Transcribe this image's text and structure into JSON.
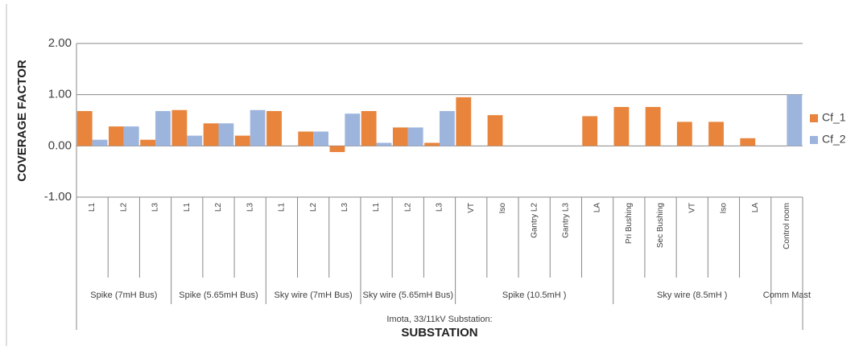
{
  "chart_data": {
    "type": "bar",
    "y_label": "COVERAGE FACTOR",
    "x_label": "SUBSTATION",
    "supergroup": "Imota, 33/11kV Substation:",
    "category_groups": [
      {
        "name": "Spike (7mH Bus)",
        "categories": [
          "L1",
          "L2",
          "L3"
        ]
      },
      {
        "name": "Spike (5.65mH Bus)",
        "categories": [
          "L1",
          "L2",
          "L3"
        ]
      },
      {
        "name": "Sky wire (7mH Bus)",
        "categories": [
          "L1",
          "L2",
          "L3"
        ]
      },
      {
        "name": "Sky wire (5.65mH Bus)",
        "categories": [
          "L1",
          "L2",
          "L3"
        ]
      },
      {
        "name": "Spike (10.5mH )",
        "categories": [
          "VT",
          "Iso",
          "Gantry L2",
          "Gantry L3",
          "LA"
        ]
      },
      {
        "name": "Sky wire (8.5mH )",
        "categories": [
          "Pri Bushing",
          "Sec Bushing",
          "VT",
          "Iso",
          "LA"
        ]
      },
      {
        "name": "Comm Mast",
        "categories": [
          "Control room"
        ]
      }
    ],
    "series": [
      {
        "name": "Cf_1",
        "color": "#e8843c",
        "values": [
          0.68,
          0.38,
          0.12,
          0.7,
          0.44,
          0.2,
          0.68,
          0.28,
          -0.12,
          0.68,
          0.36,
          0.06,
          0.95,
          0.6,
          0,
          0,
          0.58,
          0.76,
          0.76,
          0.47,
          0.47,
          0.15,
          0
        ]
      },
      {
        "name": "Cf_2",
        "color": "#9db5dd",
        "values": [
          0.12,
          0.38,
          0.68,
          0.2,
          0.44,
          0.7,
          0,
          0.28,
          0.63,
          0.06,
          0.36,
          0.68,
          0,
          0,
          0,
          0,
          0,
          0,
          0,
          0,
          0,
          0,
          1.0
        ]
      }
    ],
    "ylim": [
      -1,
      2
    ],
    "yticks": [
      {
        "value": -1,
        "label": "-1.00"
      },
      {
        "value": 0,
        "label": "0.00"
      },
      {
        "value": 1,
        "label": "1.00"
      },
      {
        "value": 2,
        "label": "2.00"
      }
    ],
    "grid": true,
    "legend": "right"
  }
}
